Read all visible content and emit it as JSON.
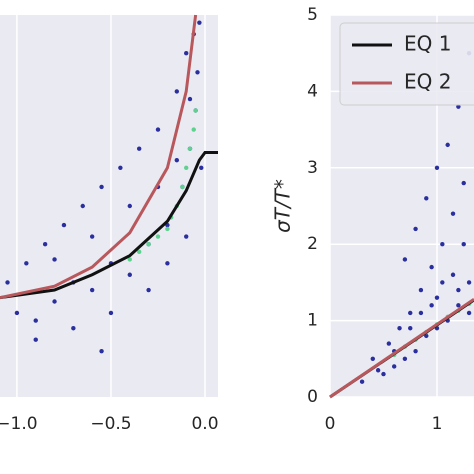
{
  "chart_data": [
    {
      "type": "scatter",
      "xlim": [
        -1.09,
        0.069
      ],
      "ylim": [
        0,
        1
      ],
      "xticks": [
        {
          "value": -1.0,
          "label": "−1.0"
        },
        {
          "value": -0.5,
          "label": "−0.5"
        },
        {
          "value": 0.0,
          "label": "0.0"
        }
      ],
      "grid": true,
      "points": {
        "color": "#2b2f9e",
        "x": [
          -1.05,
          -1.0,
          -0.95,
          -0.9,
          -0.85,
          -0.8,
          -0.75,
          -0.7,
          -0.65,
          -0.6,
          -0.55,
          -0.5,
          -0.45,
          -0.4,
          -0.35,
          -0.3,
          -0.25,
          -0.2,
          -0.15,
          -0.12,
          -0.1,
          -0.08,
          -0.06,
          -0.05,
          -0.04,
          -0.03,
          -0.02,
          -0.9,
          -0.7,
          -0.5,
          -0.3,
          -0.2,
          -0.1,
          -0.6,
          -0.4,
          -0.25,
          -0.15,
          -0.08,
          -0.8,
          -0.55
        ],
        "y": [
          0.3,
          0.22,
          0.35,
          0.2,
          0.4,
          0.25,
          0.45,
          0.3,
          0.5,
          0.28,
          0.55,
          0.35,
          0.6,
          0.32,
          0.65,
          0.4,
          0.7,
          0.45,
          0.8,
          0.55,
          0.9,
          0.65,
          0.95,
          0.75,
          0.85,
          0.98,
          0.6,
          0.15,
          0.18,
          0.22,
          0.28,
          0.35,
          0.42,
          0.42,
          0.5,
          0.55,
          0.62,
          0.78,
          0.36,
          0.12
        ]
      },
      "dense_points": {
        "color": "#5fd18f",
        "x": [
          -0.4,
          -0.35,
          -0.3,
          -0.25,
          -0.2,
          -0.18,
          -0.15,
          -0.12,
          -0.1,
          -0.08,
          -0.06,
          -0.05
        ],
        "y": [
          0.36,
          0.38,
          0.4,
          0.42,
          0.44,
          0.47,
          0.5,
          0.55,
          0.6,
          0.65,
          0.7,
          0.75
        ]
      },
      "series": [
        {
          "name": "EQ 1",
          "color": "#111111",
          "x": [
            -1.09,
            -0.8,
            -0.6,
            -0.4,
            -0.2,
            -0.1,
            -0.03,
            0,
            0.069
          ],
          "values": [
            0.26,
            0.28,
            0.32,
            0.37,
            0.46,
            0.54,
            0.62,
            0.64,
            0.64
          ]
        },
        {
          "name": "EQ 2",
          "color": "#b8585c",
          "x": [
            -1.09,
            -0.8,
            -0.6,
            -0.4,
            -0.2,
            -0.1,
            -0.05
          ],
          "values": [
            0.26,
            0.29,
            0.34,
            0.43,
            0.6,
            0.8,
            1.0
          ]
        }
      ]
    },
    {
      "type": "scatter",
      "ylabel": "σT/T*",
      "xlim": [
        0,
        1.346
      ],
      "ylim": [
        0,
        5
      ],
      "xticks": [
        0,
        1
      ],
      "yticks": [
        0,
        1,
        2,
        3,
        4,
        5
      ],
      "grid": true,
      "legend": "upper left",
      "points": {
        "color": "#2b2f9e",
        "x": [
          0.3,
          0.4,
          0.5,
          0.55,
          0.6,
          0.65,
          0.7,
          0.75,
          0.8,
          0.85,
          0.9,
          0.95,
          1.0,
          1.05,
          1.1,
          1.15,
          1.2,
          1.25,
          1.3,
          0.7,
          0.8,
          0.9,
          1.0,
          1.1,
          1.2,
          1.3,
          0.75,
          0.85,
          1.0,
          1.15,
          1.25,
          1.05,
          0.95,
          1.2,
          1.3,
          0.6,
          0.45,
          1.1
        ],
        "y": [
          0.2,
          0.5,
          0.3,
          0.7,
          0.4,
          0.9,
          0.5,
          1.1,
          0.6,
          1.4,
          0.8,
          1.7,
          0.9,
          2.0,
          1.0,
          2.4,
          1.2,
          2.8,
          1.5,
          1.8,
          2.2,
          2.6,
          3.0,
          3.3,
          3.8,
          4.5,
          0.9,
          1.1,
          1.3,
          1.6,
          2.0,
          1.5,
          1.2,
          1.4,
          1.1,
          0.6,
          0.35,
          4.2
        ]
      },
      "dense_points": {
        "color": "#5fd18f",
        "x": [
          0.6,
          0.7,
          0.8,
          0.9,
          1.0,
          1.1,
          1.2,
          1.3
        ],
        "y": [
          0.55,
          0.66,
          0.75,
          0.85,
          0.95,
          1.05,
          1.13,
          1.22
        ]
      },
      "series": [
        {
          "name": "EQ 1",
          "color": "#111111",
          "x": [
            0,
            1.346
          ],
          "values": [
            0,
            1.27
          ]
        },
        {
          "name": "EQ 2",
          "color": "#b8585c",
          "x": [
            0,
            1.346
          ],
          "values": [
            0,
            1.28
          ]
        }
      ]
    }
  ]
}
